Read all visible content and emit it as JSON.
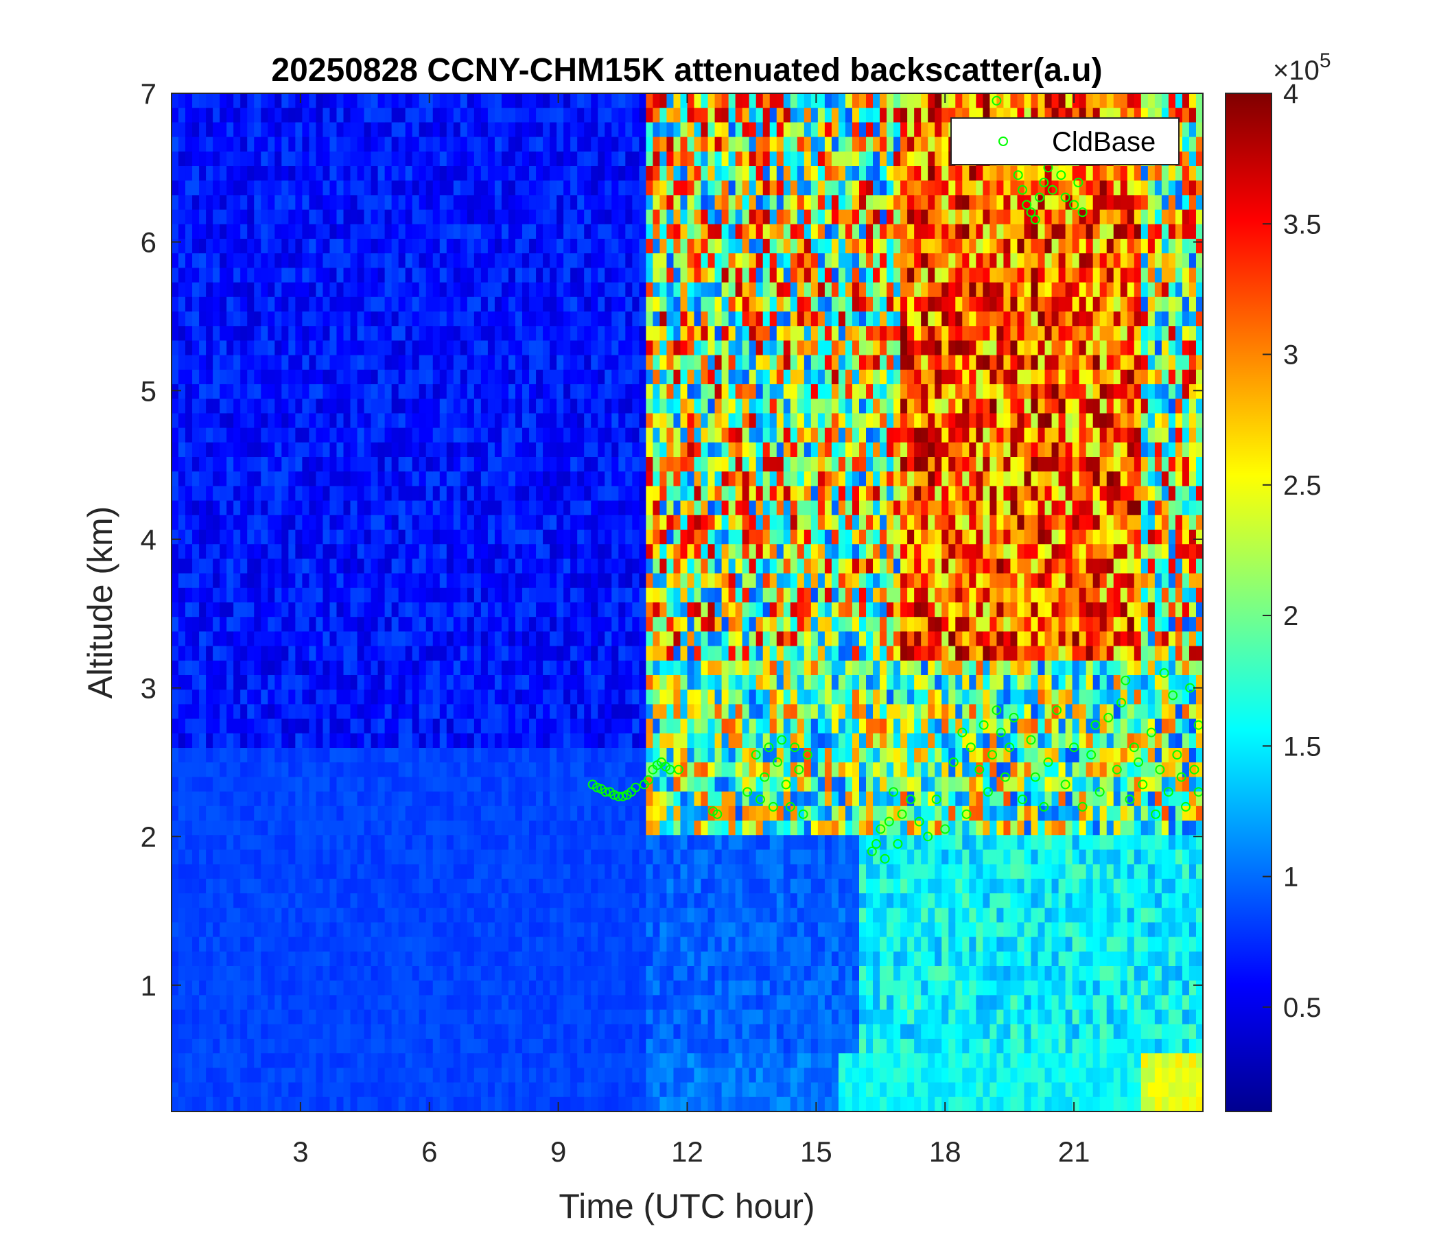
{
  "chart_data": {
    "type": "heatmap",
    "title": "20250828 CCNY-CHM15K attenuated backscatter(a.u)",
    "xlabel": "Time (UTC hour)",
    "ylabel": "Altitude (km)",
    "xlim": [
      0,
      24
    ],
    "ylim": [
      0.15,
      7
    ],
    "xticks": [
      3,
      6,
      9,
      12,
      15,
      18,
      21
    ],
    "yticks": [
      1,
      2,
      3,
      4,
      5,
      6,
      7
    ],
    "colorbar": {
      "colormap": "jet",
      "clim": [
        10000,
        400000
      ],
      "ticks": [
        0.5,
        1,
        1.5,
        2,
        2.5,
        3,
        3.5,
        4
      ],
      "exponent_label": "×10",
      "exponent": "5"
    },
    "legend": {
      "entries": [
        "CldBase"
      ],
      "location": "top-right"
    },
    "series": [
      {
        "name": "CldBase",
        "marker": "o",
        "color": "#00ff00",
        "x": [
          9.8,
          9.9,
          10.0,
          10.1,
          10.2,
          10.3,
          10.4,
          10.5,
          10.6,
          10.7,
          10.8,
          11.0,
          11.1,
          11.2,
          11.3,
          11.4,
          11.5,
          11.6,
          11.8,
          12.6,
          12.7,
          13.4,
          13.6,
          13.7,
          13.8,
          13.9,
          14.0,
          14.1,
          14.2,
          14.3,
          14.4,
          14.5,
          14.6,
          14.7,
          14.8,
          16.3,
          16.4,
          16.5,
          16.6,
          16.7,
          16.8,
          16.9,
          17.0,
          17.2,
          17.4,
          17.6,
          17.8,
          18.0,
          18.2,
          18.4,
          18.5,
          18.6,
          18.8,
          18.9,
          19.0,
          19.1,
          19.2,
          19.3,
          19.4,
          19.5,
          19.6,
          19.8,
          20.0,
          20.1,
          20.3,
          20.4,
          20.6,
          20.8,
          21.0,
          21.2,
          21.4,
          21.5,
          21.6,
          21.8,
          22.0,
          22.1,
          22.2,
          22.3,
          22.4,
          22.5,
          22.6,
          22.8,
          22.9,
          23.0,
          23.1,
          23.2,
          23.3,
          23.4,
          23.5,
          23.6,
          23.7,
          23.8,
          23.9,
          23.9,
          19.0,
          19.2,
          19.3,
          19.4,
          19.5,
          19.6,
          19.7,
          19.8,
          19.9,
          20.0,
          20.1,
          20.2,
          20.3,
          20.4,
          20.5,
          20.6,
          20.7,
          20.8,
          21.0,
          21.1,
          21.2
        ],
        "y": [
          2.35,
          2.33,
          2.32,
          2.3,
          2.3,
          2.28,
          2.27,
          2.27,
          2.28,
          2.3,
          2.33,
          2.35,
          2.38,
          2.45,
          2.48,
          2.5,
          2.47,
          2.45,
          2.45,
          2.17,
          2.15,
          2.3,
          2.55,
          2.25,
          2.4,
          2.6,
          2.2,
          2.5,
          2.65,
          2.35,
          2.2,
          2.6,
          2.45,
          2.15,
          2.55,
          1.9,
          1.95,
          2.05,
          1.85,
          2.1,
          2.3,
          1.95,
          2.15,
          2.25,
          2.1,
          2.0,
          2.25,
          2.05,
          2.5,
          2.7,
          2.15,
          2.6,
          2.45,
          2.75,
          2.3,
          2.55,
          2.85,
          2.7,
          2.4,
          2.6,
          2.8,
          2.25,
          2.65,
          2.4,
          2.2,
          2.5,
          2.85,
          2.35,
          2.6,
          2.2,
          2.55,
          2.75,
          2.3,
          2.8,
          2.45,
          2.9,
          3.05,
          2.25,
          2.6,
          2.5,
          2.35,
          2.7,
          2.15,
          2.45,
          3.1,
          2.3,
          2.95,
          2.55,
          2.4,
          2.2,
          3.0,
          2.45,
          2.3,
          2.75,
          6.8,
          6.95,
          6.6,
          6.75,
          6.55,
          6.7,
          6.45,
          6.35,
          6.25,
          6.2,
          6.15,
          6.3,
          6.4,
          6.5,
          6.35,
          6.6,
          6.45,
          6.3,
          6.25,
          6.4,
          6.2
        ]
      }
    ]
  }
}
